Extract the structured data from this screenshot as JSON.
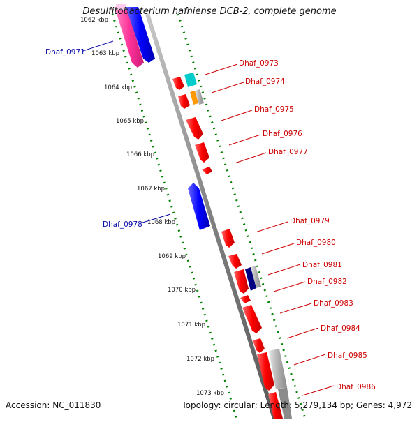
{
  "title": "Desulfitobacterium hafniense DCB-2, complete genome",
  "footer": {
    "accession": "Accession: NC_011830",
    "summary": "Topology: circular; Length: 5,279,134 bp; Genes: 4,972"
  },
  "kbp_labels": [
    "1062 kbp",
    "1063 kbp",
    "1064 kbp",
    "1065 kbp",
    "1066 kbp",
    "1067 kbp",
    "1068 kbp",
    "1069 kbp",
    "1070 kbp",
    "1071 kbp",
    "1072 kbp",
    "1073 kbp"
  ],
  "genes_left": [
    "Dhaf_0971",
    "Dhaf_0978"
  ],
  "genes_right": [
    "Dhaf_0973",
    "Dhaf_0974",
    "Dhaf_0975",
    "Dhaf_0976",
    "Dhaf_0977",
    "Dhaf_0979",
    "Dhaf_0980",
    "Dhaf_0981",
    "Dhaf_0982",
    "Dhaf_0983",
    "Dhaf_0984",
    "Dhaf_0985",
    "Dhaf_0986"
  ],
  "colors": {
    "axis": "#808080",
    "ticks": "#008000",
    "forward": "#ff0000",
    "reverse": "#0000ff",
    "magenta": "#ff3399",
    "cyan": "#00cccc",
    "orange": "#ff9900",
    "navy": "#000080",
    "gray": "#a0a0a0",
    "left_label": "#0a0aa8",
    "right_label": "#cc0000"
  }
}
